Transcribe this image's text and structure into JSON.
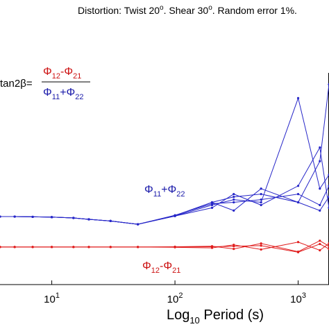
{
  "chart_data": {
    "type": "line",
    "title": [
      "Distortion: Twist 20",
      "o",
      ". Shear 30",
      "o",
      ". Random error 1%."
    ],
    "xlabel": [
      "Log",
      "10",
      " Period (s)"
    ],
    "formula": {
      "lhs": "tan2β=",
      "numerator": [
        "Φ",
        "12",
        "-Φ",
        "21"
      ],
      "numerator_color": "#cc1111",
      "denominator": [
        "Φ",
        "11",
        "+Φ",
        "22"
      ],
      "denominator_color": "#1a1aaa"
    },
    "annotations": [
      {
        "text": [
          "Φ",
          "11",
          "+Φ",
          "22"
        ],
        "color": "#1a1aaa"
      },
      {
        "text": [
          "Φ",
          "12",
          "-Φ",
          "21"
        ],
        "color": "#cc1111"
      }
    ],
    "log_x": true,
    "xlim": [
      3.8,
      1780
    ],
    "ylim": [
      0,
      1
    ],
    "xticks": [
      {
        "value": 10,
        "label": "10",
        "exponent": "1"
      },
      {
        "value": 100,
        "label": "10",
        "exponent": "2"
      },
      {
        "value": 1000,
        "label": "10",
        "exponent": "3"
      }
    ],
    "x": [
      3.8,
      5,
      7,
      10,
      15,
      20,
      30,
      50,
      100,
      200,
      300,
      500,
      1000,
      1500,
      1780
    ],
    "series": [
      {
        "color": "#2626c8",
        "values": [
          0.248,
          0.248,
          0.247,
          0.246,
          0.243,
          0.238,
          0.232,
          0.22,
          0.25,
          0.29,
          0.31,
          0.3,
          0.68,
          0.35,
          0.4
        ]
      },
      {
        "color": "#2626c8",
        "values": [
          0.248,
          0.248,
          0.247,
          0.246,
          0.243,
          0.238,
          0.232,
          0.22,
          0.252,
          0.3,
          0.32,
          0.33,
          0.3,
          0.45,
          0.73
        ]
      },
      {
        "color": "#2626c8",
        "values": [
          0.248,
          0.248,
          0.247,
          0.246,
          0.243,
          0.238,
          0.232,
          0.22,
          0.251,
          0.3,
          0.27,
          0.35,
          0.3,
          0.27,
          0.32
        ]
      },
      {
        "color": "#2626c8",
        "values": [
          0.248,
          0.248,
          0.247,
          0.246,
          0.243,
          0.238,
          0.232,
          0.22,
          0.25,
          0.28,
          0.33,
          0.29,
          0.36,
          0.5,
          0.28
        ]
      },
      {
        "color": "#2626c8",
        "values": [
          0.248,
          0.248,
          0.247,
          0.246,
          0.243,
          0.238,
          0.232,
          0.22,
          0.253,
          0.295,
          0.3,
          0.31,
          0.33,
          0.29,
          0.36
        ]
      },
      {
        "color": "#e01c1c",
        "values": [
          0.137,
          0.137,
          0.137,
          0.137,
          0.137,
          0.137,
          0.137,
          0.137,
          0.138,
          0.14,
          0.13,
          0.15,
          0.12,
          0.16,
          0.14
        ]
      },
      {
        "color": "#e01c1c",
        "values": [
          0.137,
          0.137,
          0.137,
          0.137,
          0.137,
          0.137,
          0.137,
          0.137,
          0.136,
          0.134,
          0.145,
          0.128,
          0.155,
          0.125,
          0.15
        ]
      },
      {
        "color": "#e01c1c",
        "values": [
          0.137,
          0.137,
          0.137,
          0.137,
          0.137,
          0.137,
          0.137,
          0.137,
          0.137,
          0.138,
          0.14,
          0.142,
          0.118,
          0.148,
          0.13
        ]
      }
    ]
  }
}
